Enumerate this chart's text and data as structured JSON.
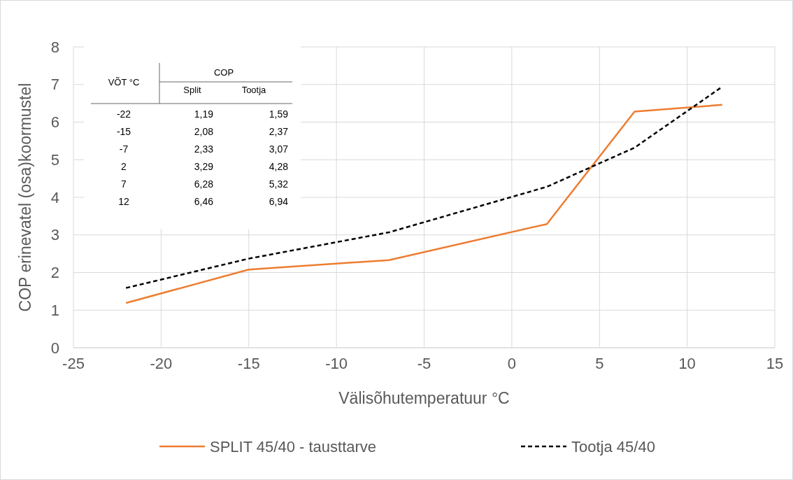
{
  "chart_data": [
    {
      "type": "line",
      "xlabel": "Välisõhutemperatuur °C",
      "ylabel": "COP  erinevatel (osa)koormustel",
      "x": [
        -22,
        -15,
        -7,
        2,
        7,
        12
      ],
      "series": [
        {
          "name": "SPLIT 45/40 - tausttarve",
          "color": "#ed7d31",
          "line_style": "solid",
          "values": [
            1.19,
            2.08,
            2.33,
            3.29,
            6.28,
            6.46
          ]
        },
        {
          "name": "Tootja 45/40",
          "color": "#000000",
          "line_style": "dashed",
          "values": [
            1.59,
            2.37,
            3.07,
            4.28,
            5.32,
            6.94
          ]
        }
      ],
      "xlim": [
        -25,
        15
      ],
      "xticks": [
        -25,
        -20,
        -15,
        -10,
        -5,
        0,
        5,
        10,
        15
      ],
      "ylim": [
        0,
        8
      ],
      "yticks": [
        0,
        1,
        2,
        3,
        4,
        5,
        6,
        7,
        8
      ],
      "grid": true,
      "legend": "bottom"
    },
    {
      "type": "other",
      "annotations": [
        "VÕT °C",
        "COP",
        "Split",
        "Tootja",
        "-22",
        "1,19",
        "1,59",
        "-15",
        "2,08",
        "2,37",
        "-7",
        "2,33",
        "3,07",
        "2",
        "3,29",
        "4,28",
        "7",
        "6,28",
        "5,32",
        "12",
        "6,46",
        "6,94"
      ]
    }
  ]
}
